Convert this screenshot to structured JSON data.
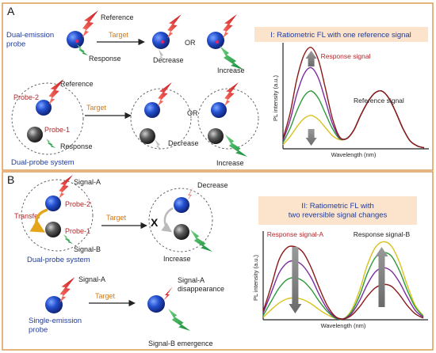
{
  "panels": {
    "a": {
      "letter": "A",
      "dual_emission_probe": "Dual-emission\nprobe",
      "reference": "Reference",
      "target": "Target",
      "response": "Response",
      "or": "OR",
      "decrease": "Decrease",
      "increase": "Increase",
      "probe2": "Probe-2",
      "probe1": "Probe-1",
      "reference2": "Reference",
      "target2": "Target",
      "response2": "Response",
      "or2": "OR",
      "decrease2": "Decrease",
      "increase2": "Increase",
      "dual_probe_system": "Dual-probe system",
      "chart_title": "I: Ratiometric FL with one reference signal",
      "response_signal": "Response signal",
      "reference_signal": "Reference signal",
      "ylabel": "PL intensity (a.u.)",
      "xlabel": "Wavelength (nm)"
    },
    "b": {
      "letter": "B",
      "signal_a": "Signal-A",
      "probe2": "Probe-2",
      "transfer": "Transfer",
      "probe1": "Probe-1",
      "signal_b": "Signal-B",
      "dual_probe_system": "Dual-probe system",
      "target": "Target",
      "x_mark": "X",
      "decrease": "Decrease",
      "increase": "Increase",
      "signal_a2": "Signal-A",
      "target2": "Target",
      "signal_a_disappearance": "Signal-A\ndisappearance",
      "single_emission_probe": "Single-emission\nprobe",
      "signal_b_emergence": "Signal-B emergence",
      "chart_title": "II: Ratiometric FL with\ntwo reversible signal changes",
      "response_signal_a": "Response signal-A",
      "response_signal_b": "Response signal-B",
      "ylabel": "PL intensity (a.u.)",
      "xlabel": "Wavelength (nm)"
    }
  },
  "colors": {
    "frame": "#d98b3a",
    "probe_blue": "#1a3fb0",
    "probe_gray": "#555555",
    "red_flash": "#e0262a",
    "green_flash": "#1fa24a",
    "title_bg": "#fbe3cc",
    "series": [
      "#8b1a1a",
      "#7b2c9e",
      "#2e9a3c",
      "#d9c21e"
    ]
  },
  "chart_data": [
    {
      "type": "line",
      "title": "I: Ratiometric FL with one reference signal",
      "xlabel": "Wavelength (nm)",
      "ylabel": "PL intensity (a.u.)",
      "ylim": [
        0,
        1
      ],
      "x": [
        0,
        0.05,
        0.1,
        0.15,
        0.2,
        0.25,
        0.3,
        0.35,
        0.4,
        0.45,
        0.5,
        0.55,
        0.6,
        0.65,
        0.7,
        0.75,
        0.8,
        0.85,
        0.9,
        0.95,
        1.0
      ],
      "series": [
        {
          "values": [
            0.1,
            0.35,
            0.7,
            0.93,
            1.0,
            0.88,
            0.6,
            0.3,
            0.12,
            0.1,
            0.18,
            0.33,
            0.46,
            0.55,
            0.57,
            0.5,
            0.36,
            0.2,
            0.08,
            0.03,
            0.01
          ]
        },
        {
          "values": [
            0.08,
            0.28,
            0.55,
            0.74,
            0.8,
            0.7,
            0.48,
            0.25,
            0.11,
            0.1,
            0.18,
            0.33,
            0.46,
            0.55,
            0.57,
            0.5,
            0.36,
            0.2,
            0.08,
            0.03,
            0.01
          ]
        },
        {
          "values": [
            0.06,
            0.2,
            0.38,
            0.52,
            0.57,
            0.5,
            0.35,
            0.2,
            0.1,
            0.1,
            0.18,
            0.33,
            0.46,
            0.55,
            0.57,
            0.5,
            0.36,
            0.2,
            0.08,
            0.03,
            0.01
          ]
        },
        {
          "values": [
            0.04,
            0.12,
            0.22,
            0.3,
            0.33,
            0.29,
            0.21,
            0.13,
            0.09,
            0.1,
            0.18,
            0.33,
            0.46,
            0.55,
            0.57,
            0.5,
            0.36,
            0.2,
            0.08,
            0.03,
            0.01
          ]
        }
      ]
    },
    {
      "type": "line",
      "title": "II: Ratiometric FL with two reversible signal changes",
      "xlabel": "Wavelength (nm)",
      "ylabel": "PL intensity (a.u.)",
      "ylim": [
        0,
        1
      ],
      "x": [
        0,
        0.05,
        0.1,
        0.15,
        0.2,
        0.25,
        0.3,
        0.35,
        0.4,
        0.45,
        0.5,
        0.55,
        0.6,
        0.65,
        0.7,
        0.75,
        0.8,
        0.85,
        0.9,
        0.95,
        1.0
      ],
      "series": [
        {
          "values": [
            0.1,
            0.4,
            0.72,
            0.86,
            0.87,
            0.8,
            0.62,
            0.38,
            0.17,
            0.04,
            0.01,
            0.05,
            0.15,
            0.28,
            0.38,
            0.42,
            0.4,
            0.3,
            0.17,
            0.07,
            0.02
          ]
        },
        {
          "values": [
            0.08,
            0.32,
            0.56,
            0.68,
            0.7,
            0.64,
            0.5,
            0.3,
            0.13,
            0.03,
            0.01,
            0.07,
            0.22,
            0.42,
            0.57,
            0.62,
            0.58,
            0.45,
            0.27,
            0.11,
            0.03
          ]
        },
        {
          "values": [
            0.05,
            0.22,
            0.38,
            0.48,
            0.5,
            0.46,
            0.36,
            0.22,
            0.1,
            0.02,
            0.01,
            0.09,
            0.28,
            0.55,
            0.74,
            0.8,
            0.76,
            0.59,
            0.35,
            0.15,
            0.04
          ]
        },
        {
          "values": [
            0.03,
            0.12,
            0.2,
            0.25,
            0.26,
            0.24,
            0.19,
            0.12,
            0.06,
            0.02,
            0.01,
            0.11,
            0.34,
            0.65,
            0.86,
            0.93,
            0.88,
            0.69,
            0.41,
            0.17,
            0.05
          ]
        }
      ]
    }
  ]
}
